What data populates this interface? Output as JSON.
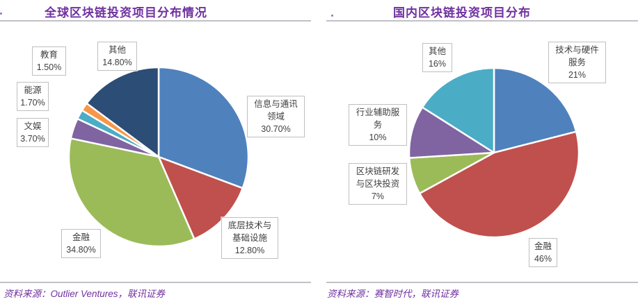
{
  "chart_data": [
    {
      "type": "pie",
      "title": "全球区块链投资项目分布情况",
      "source": "资料来源：Outlier Ventures，联讯证券",
      "legend_position": "none",
      "labels_style": "boxed-callouts",
      "slices": [
        {
          "label": "信息与通讯领域",
          "value": 30.7,
          "pct_text": "30.70%",
          "color": "#4f81bd",
          "callout": "信息与通讯\n领域\n30.70%"
        },
        {
          "label": "底层技术与基础设施",
          "value": 12.8,
          "pct_text": "12.80%",
          "color": "#c0504d",
          "callout": "底层技术与\n基础设施\n12.80%"
        },
        {
          "label": "金融",
          "value": 34.8,
          "pct_text": "34.80%",
          "color": "#9bbb59",
          "callout": "金融\n34.80%"
        },
        {
          "label": "文娱",
          "value": 3.7,
          "pct_text": "3.70%",
          "color": "#8064a2",
          "callout": "文娱\n3.70%"
        },
        {
          "label": "能源",
          "value": 1.7,
          "pct_text": "1.70%",
          "color": "#4bacc6",
          "callout": "能源\n1.70%"
        },
        {
          "label": "教育",
          "value": 1.5,
          "pct_text": "1.50%",
          "color": "#f79646",
          "callout": "教育\n1.50%"
        },
        {
          "label": "其他",
          "value": 14.8,
          "pct_text": "14.80%",
          "color": "#2c4d75",
          "callout": "其他\n14.80%"
        }
      ]
    },
    {
      "type": "pie",
      "title": "国内区块链投资项目分布",
      "source": "资料来源：赛智时代，联讯证券",
      "legend_position": "none",
      "labels_style": "boxed-callouts",
      "slices": [
        {
          "label": "技术与硬件服务",
          "value": 21,
          "pct_text": "21%",
          "color": "#4f81bd",
          "callout": "技术与硬件\n服务\n21%"
        },
        {
          "label": "金融",
          "value": 46,
          "pct_text": "46%",
          "color": "#c0504d",
          "callout": "金融\n46%"
        },
        {
          "label": "区块链研发与区块投资",
          "value": 7,
          "pct_text": "7%",
          "color": "#9bbb59",
          "callout": "区块链研发\n与区块投资\n7%"
        },
        {
          "label": "行业辅助服务",
          "value": 10,
          "pct_text": "10%",
          "color": "#8064a2",
          "callout": "行业辅助服\n务\n10%"
        },
        {
          "label": "其他",
          "value": 16,
          "pct_text": "16%",
          "color": "#4bacc6",
          "callout": "其他\n16%"
        }
      ]
    }
  ]
}
